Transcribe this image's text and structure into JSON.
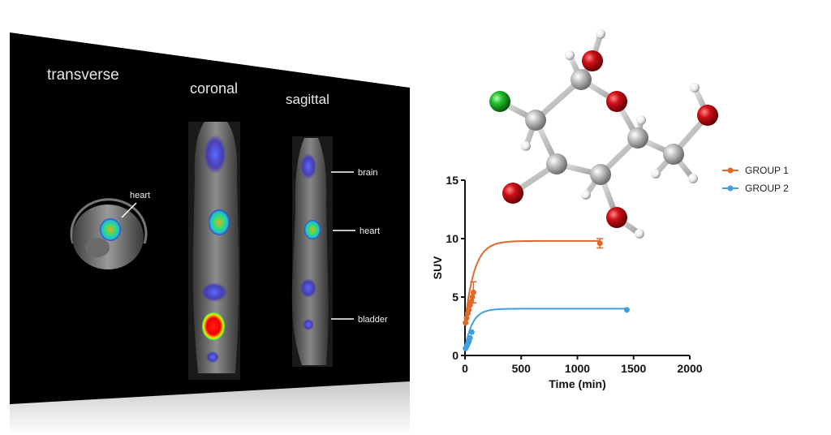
{
  "scan": {
    "views": [
      "transverse",
      "coronal",
      "sagittal"
    ],
    "annotations": {
      "transverse_heart": "heart",
      "brain": "brain",
      "heart": "heart",
      "bladder": "bladder"
    }
  },
  "molecule": {
    "atom_colors": {
      "carbon": "#b9b9b9",
      "oxygen": "#d0101a",
      "chlorine": "#22c02a",
      "hydrogen": "#f2f2f2"
    }
  },
  "chart_data": {
    "type": "line",
    "xlabel": "Time (min)",
    "ylabel": "SUV",
    "xlim": [
      0,
      2000
    ],
    "ylim": [
      0,
      15
    ],
    "x_ticks": [
      0,
      500,
      1000,
      1500,
      2000
    ],
    "y_ticks": [
      0,
      5,
      10,
      15
    ],
    "legend_position": "top-right",
    "series": [
      {
        "name": "GROUP 1",
        "color": "#e0692a",
        "points": [
          {
            "x": 5,
            "y": 2.8
          },
          {
            "x": 15,
            "y": 3.2
          },
          {
            "x": 25,
            "y": 3.6
          },
          {
            "x": 35,
            "y": 3.9
          },
          {
            "x": 45,
            "y": 4.3
          },
          {
            "x": 55,
            "y": 4.6
          },
          {
            "x": 65,
            "y": 5.0
          },
          {
            "x": 75,
            "y": 5.4
          },
          {
            "x": 1200,
            "y": 9.6
          }
        ],
        "error_bars": [
          {
            "x": 75,
            "y": 5.4,
            "err": 0.9
          },
          {
            "x": 1200,
            "y": 9.6,
            "err": 0.4
          }
        ],
        "fit": {
          "ymax": 9.8,
          "k": 0.012
        }
      },
      {
        "name": "GROUP 2",
        "color": "#3ea0e0",
        "points": [
          {
            "x": 5,
            "y": 0.6
          },
          {
            "x": 15,
            "y": 0.8
          },
          {
            "x": 25,
            "y": 1.0
          },
          {
            "x": 35,
            "y": 1.2
          },
          {
            "x": 45,
            "y": 1.5
          },
          {
            "x": 60,
            "y": 2.0
          },
          {
            "x": 1440,
            "y": 3.9
          }
        ],
        "fit": {
          "ymax": 4.0,
          "k": 0.015
        }
      }
    ]
  }
}
